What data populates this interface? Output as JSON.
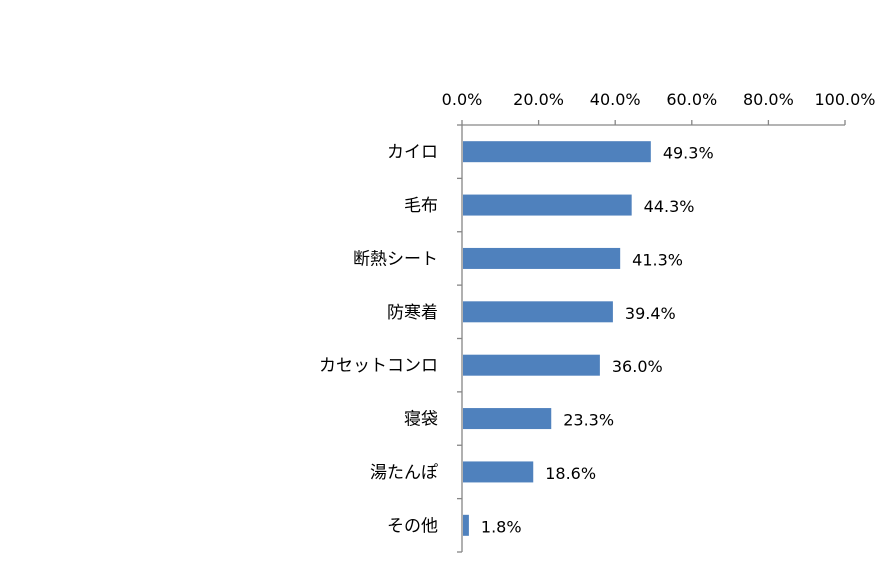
{
  "chart_data": {
    "type": "bar",
    "orientation": "horizontal",
    "categories": [
      "カイロ",
      "毛布",
      "断熱シート",
      "防寒着",
      "カセットコンロ",
      "寝袋",
      "湯たんぽ",
      "その他"
    ],
    "values": [
      49.3,
      44.3,
      41.3,
      39.4,
      36.0,
      23.3,
      18.6,
      1.8
    ],
    "data_labels": [
      "49.3%",
      "44.3%",
      "41.3%",
      "39.4%",
      "36.0%",
      "23.3%",
      "18.6%",
      "1.8%"
    ],
    "x_ticks": [
      "0.0%",
      "20.0%",
      "40.0%",
      "60.0%",
      "80.0%",
      "100.0%"
    ],
    "xlim": [
      0,
      100
    ],
    "x_axis_position": "top",
    "grid": false,
    "legend": "none",
    "bar_color": "#4f81bd"
  }
}
